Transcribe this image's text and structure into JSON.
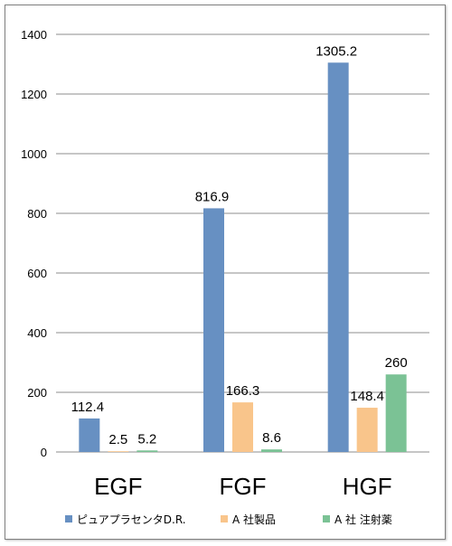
{
  "chart_data": {
    "type": "bar",
    "categories": [
      "EGF",
      "FGF",
      "HGF"
    ],
    "series": [
      {
        "name": "ピュアプラセンタD.R.",
        "values": [
          112.4,
          816.9,
          1305.2
        ],
        "labels": [
          "112.4",
          "816.9",
          "1305.2"
        ],
        "color": "#6790c2"
      },
      {
        "name": "A 社製品",
        "values": [
          2.5,
          166.3,
          148.4
        ],
        "labels": [
          "2.5",
          "166.3",
          "148.4"
        ],
        "color": "#f9c58b"
      },
      {
        "name": "A 社 注射薬",
        "values": [
          5.2,
          8.6,
          260
        ],
        "labels": [
          "5.2",
          "8.6",
          "260"
        ],
        "color": "#7bc295"
      }
    ],
    "yticks": [
      "0",
      "200",
      "400",
      "600",
      "800",
      "1000",
      "1200",
      "1400"
    ],
    "ylim": [
      0,
      1400
    ],
    "grid": true,
    "legend": "bottom"
  }
}
